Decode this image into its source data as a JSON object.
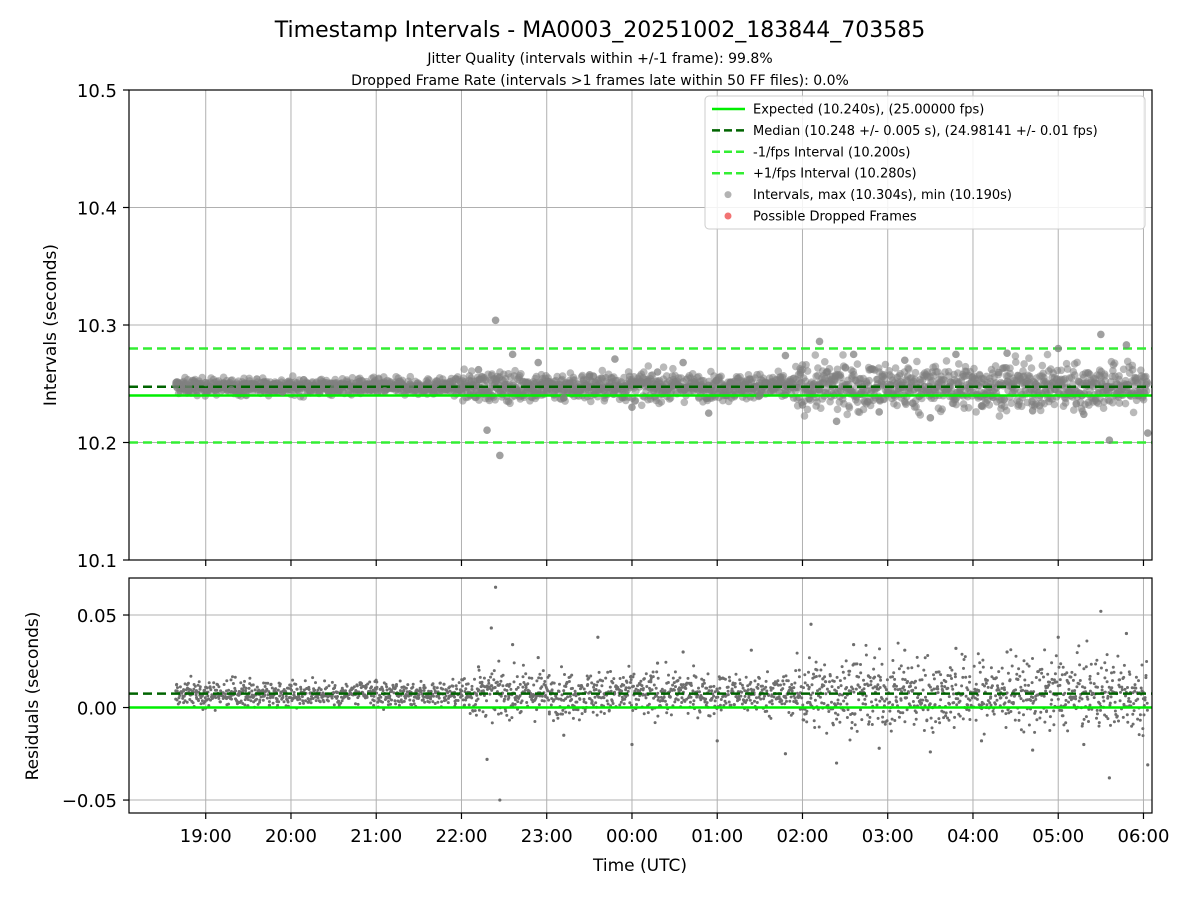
{
  "figure": {
    "title": "Timestamp Intervals - MA0003_20251002_183844_703585",
    "subtitle_line1": "Jitter Quality (intervals within +/-1 frame): 99.8%",
    "subtitle_line2": "Dropped Frame Rate (intervals >1 frames late within 50 FF files): 0.0%"
  },
  "colors": {
    "expected": "#00ee00",
    "median": "#006400",
    "interval_band": "#33ee33",
    "points": "#808080",
    "dropped": "#ee4444",
    "grid": "#b0b0b0",
    "axis": "#000000"
  },
  "chart_data": [
    {
      "type": "scatter",
      "id": "intervals",
      "xlabel": "",
      "ylabel": "Intervals (seconds)",
      "xlim": [
        -0.9,
        11.1
      ],
      "ylim": [
        10.1,
        10.5
      ],
      "grid": true,
      "legend_position": "top-right",
      "x_tick_labels": [],
      "y_ticks": [
        10.1,
        10.2,
        10.3,
        10.4,
        10.5
      ],
      "y_tick_labels": [
        "10.1",
        "10.2",
        "10.3",
        "10.4",
        "10.5"
      ],
      "lines": {
        "expected": 10.24,
        "median": 10.2475,
        "minus_one_frame": 10.2,
        "plus_one_frame": 10.28
      },
      "legend": [
        {
          "label": "Expected (10.240s), (25.00000 fps)",
          "style": "solid",
          "color_key": "expected"
        },
        {
          "label": "Median (10.248 +/- 0.005 s), (24.98141 +/- 0.01 fps)",
          "style": "dashed",
          "color_key": "median"
        },
        {
          "label": "-1/fps Interval (10.200s)",
          "style": "dashed",
          "color_key": "interval_band"
        },
        {
          "label": "+1/fps Interval (10.280s)",
          "style": "dashed",
          "color_key": "interval_band"
        },
        {
          "label": "Intervals, max (10.304s), min (10.190s)",
          "style": "marker",
          "color_key": "points"
        },
        {
          "label": "Possible Dropped Frames",
          "style": "marker",
          "color_key": "dropped"
        }
      ],
      "series": [
        {
          "name": "intervals",
          "x_hours_since_19": [
            -0.35,
            -0.2,
            0.0,
            0.3,
            0.6,
            0.9,
            1.2,
            1.5,
            1.8,
            2.1,
            2.4,
            2.7,
            3.0,
            3.2,
            3.3,
            3.4,
            3.45,
            3.6,
            3.9,
            4.2,
            4.5,
            4.8,
            5.0,
            5.3,
            5.6,
            5.9,
            6.2,
            6.5,
            6.8,
            7.0,
            7.2,
            7.4,
            7.6,
            7.9,
            8.2,
            8.5,
            8.8,
            9.1,
            9.4,
            9.7,
            10.0,
            10.3,
            10.5,
            10.6,
            10.8,
            11.05
          ],
          "y_seconds": [
            10.249,
            10.247,
            10.251,
            10.245,
            10.254,
            10.243,
            10.25,
            10.246,
            10.252,
            10.244,
            10.248,
            10.25,
            10.247,
            10.262,
            10.2105,
            10.304,
            10.189,
            10.275,
            10.268,
            10.238,
            10.256,
            10.271,
            10.23,
            10.26,
            10.268,
            10.225,
            10.252,
            10.24,
            10.274,
            10.232,
            10.286,
            10.218,
            10.275,
            10.226,
            10.27,
            10.221,
            10.275,
            10.231,
            10.276,
            10.227,
            10.28,
            10.224,
            10.292,
            10.202,
            10.283,
            10.208
          ]
        }
      ],
      "dropped_frames": []
    },
    {
      "type": "scatter",
      "id": "residuals",
      "xlabel": "Time (UTC)",
      "ylabel": "Residuals (seconds)",
      "xlim": [
        -0.9,
        11.1
      ],
      "ylim": [
        -0.057,
        0.07
      ],
      "grid": true,
      "x_ticks": [
        0,
        1,
        2,
        3,
        4,
        5,
        6,
        7,
        8,
        9,
        10,
        11
      ],
      "x_tick_labels": [
        "19:00",
        "20:00",
        "21:00",
        "22:00",
        "23:00",
        "00:00",
        "01:00",
        "02:00",
        "03:00",
        "04:00",
        "05:00",
        "06:00"
      ],
      "y_ticks": [
        -0.05,
        0.0,
        0.05
      ],
      "y_tick_labels": [
        "−0.05",
        "0.00",
        "0.05"
      ],
      "lines": {
        "expected": 0.0,
        "median": 0.0075
      },
      "series": [
        {
          "name": "residuals",
          "x_hours_since_19": [
            -0.35,
            0.0,
            0.5,
            1.0,
            1.5,
            2.0,
            2.5,
            3.0,
            3.2,
            3.3,
            3.35,
            3.4,
            3.45,
            3.6,
            3.9,
            4.2,
            4.6,
            5.0,
            5.3,
            5.6,
            6.0,
            6.4,
            6.8,
            7.1,
            7.4,
            7.6,
            7.9,
            8.2,
            8.5,
            8.8,
            9.1,
            9.4,
            9.7,
            10.0,
            10.3,
            10.5,
            10.6,
            10.8,
            11.05
          ],
          "y_seconds": [
            0.009,
            0.011,
            0.006,
            0.012,
            0.008,
            0.01,
            0.007,
            0.009,
            0.022,
            -0.028,
            0.043,
            0.065,
            -0.05,
            0.034,
            0.027,
            -0.015,
            0.038,
            -0.02,
            0.024,
            0.03,
            -0.018,
            0.031,
            -0.025,
            0.045,
            -0.03,
            0.034,
            -0.022,
            0.031,
            -0.024,
            0.032,
            -0.018,
            0.03,
            -0.023,
            0.038,
            -0.02,
            0.052,
            -0.038,
            0.04,
            -0.031
          ]
        }
      ]
    }
  ]
}
